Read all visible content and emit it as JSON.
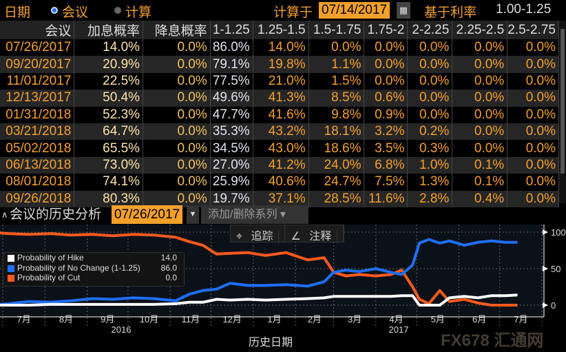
{
  "header": {
    "date_label": "日期",
    "mode_meeting": "会议",
    "mode_calc": "计算",
    "calc_on_label": "计算于",
    "calc_date": "07/14/2017",
    "base_rate_label": "基于利率",
    "base_rate": "1.00-1.25"
  },
  "table": {
    "columns": [
      "会议",
      "加息概率",
      "降息概率",
      "1-1.25",
      "1.25-1.5",
      "1.5-1.75",
      "1.75-2",
      "2-2.25",
      "2.25-2.5",
      "2.5-2.75"
    ],
    "rows": [
      [
        "07/26/2017",
        "14.0%",
        "0.0%",
        "86.0%",
        "14.0%",
        "0.0%",
        "0.0%",
        "0.0%",
        "0.0%",
        "0.0%"
      ],
      [
        "09/20/2017",
        "20.9%",
        "0.0%",
        "79.1%",
        "19.8%",
        "1.1%",
        "0.0%",
        "0.0%",
        "0.0%",
        "0.0%"
      ],
      [
        "11/01/2017",
        "22.5%",
        "0.0%",
        "77.5%",
        "21.0%",
        "1.5%",
        "0.0%",
        "0.0%",
        "0.0%",
        "0.0%"
      ],
      [
        "12/13/2017",
        "50.4%",
        "0.0%",
        "49.6%",
        "41.3%",
        "8.5%",
        "0.6%",
        "0.0%",
        "0.0%",
        "0.0%"
      ],
      [
        "01/31/2018",
        "52.3%",
        "0.0%",
        "47.7%",
        "41.6%",
        "9.8%",
        "0.9%",
        "0.0%",
        "0.0%",
        "0.0%"
      ],
      [
        "03/21/2018",
        "64.7%",
        "0.0%",
        "35.3%",
        "43.2%",
        "18.1%",
        "3.2%",
        "0.2%",
        "0.0%",
        "0.0%"
      ],
      [
        "05/02/2018",
        "65.5%",
        "0.0%",
        "34.5%",
        "43.0%",
        "18.6%",
        "3.5%",
        "0.3%",
        "0.0%",
        "0.0%"
      ],
      [
        "06/13/2018",
        "73.0%",
        "0.0%",
        "27.0%",
        "41.2%",
        "24.0%",
        "6.8%",
        "1.0%",
        "0.1%",
        "0.0%"
      ],
      [
        "08/01/2018",
        "74.1%",
        "0.0%",
        "25.9%",
        "40.6%",
        "24.7%",
        "7.5%",
        "1.3%",
        "0.1%",
        "0.0%"
      ],
      [
        "09/26/2018",
        "80.3%",
        "0.0%",
        "19.7%",
        "37.1%",
        "28.5%",
        "11.6%",
        "2.8%",
        "0.4%",
        "0.0%"
      ]
    ]
  },
  "history": {
    "title": "会议的历史分析",
    "meeting_date": "07/26/2017",
    "add_remove_series": "添加/删除系列",
    "track": "追踪",
    "annotate": "注释"
  },
  "watermark": "FX678 汇通网",
  "chart_data": {
    "type": "line",
    "xlabel": "历史日期",
    "ylabel": "",
    "ylim": [
      0,
      100
    ],
    "yticks": [
      0,
      50,
      100
    ],
    "x_month_labels": [
      "7月",
      "8月",
      "9月",
      "10月",
      "11月",
      "12月",
      "1月",
      "2月",
      "3月",
      "4月",
      "5月",
      "6月",
      "7月"
    ],
    "x_year_labels": [
      "2016",
      "2017"
    ],
    "grid": true,
    "legend_position": "top-left",
    "x": [
      "2016-06-22",
      "2016-07-05",
      "2016-07-20",
      "2016-08-05",
      "2016-08-20",
      "2016-09-05",
      "2016-09-20",
      "2016-10-05",
      "2016-10-20",
      "2016-11-05",
      "2016-11-15",
      "2016-11-25",
      "2016-12-05",
      "2016-12-15",
      "2016-12-28",
      "2017-01-10",
      "2017-01-25",
      "2017-02-10",
      "2017-02-22",
      "2017-03-01",
      "2017-03-10",
      "2017-03-20",
      "2017-04-01",
      "2017-04-12",
      "2017-04-20",
      "2017-04-28",
      "2017-05-03",
      "2017-05-10",
      "2017-05-18",
      "2017-05-25",
      "2017-06-05",
      "2017-06-15",
      "2017-06-25",
      "2017-07-05",
      "2017-07-14"
    ],
    "series": [
      {
        "name": "Probability of Hike",
        "color": "#ffffff",
        "legend_value": "14.0",
        "values": [
          0,
          0,
          0,
          1,
          1,
          1,
          1,
          1,
          1,
          2,
          4,
          4,
          8,
          7,
          8,
          7,
          8,
          9,
          10,
          12,
          12,
          12,
          12,
          12,
          13,
          13,
          0,
          0,
          0,
          10,
          12,
          10,
          13,
          13,
          14
        ]
      },
      {
        "name": "Probability of No Change (1-1.25)",
        "color": "#1e6fff",
        "legend_value": "86.0",
        "values": [
          0,
          2,
          5,
          4,
          6,
          9,
          8,
          10,
          9,
          6,
          15,
          20,
          22,
          30,
          27,
          27,
          28,
          26,
          32,
          45,
          48,
          46,
          50,
          45,
          42,
          55,
          85,
          90,
          85,
          88,
          82,
          86,
          88,
          86,
          86
        ]
      },
      {
        "name": "Probability of Cut",
        "color": "#ff5a1f",
        "legend_value": "0.0",
        "values": [
          100,
          98,
          97,
          98,
          96,
          97,
          95,
          97,
          96,
          93,
          87,
          82,
          70,
          71,
          72,
          68,
          72,
          62,
          65,
          45,
          40,
          42,
          40,
          42,
          48,
          25,
          8,
          2,
          20,
          5,
          8,
          3,
          0,
          0,
          0
        ]
      }
    ]
  }
}
